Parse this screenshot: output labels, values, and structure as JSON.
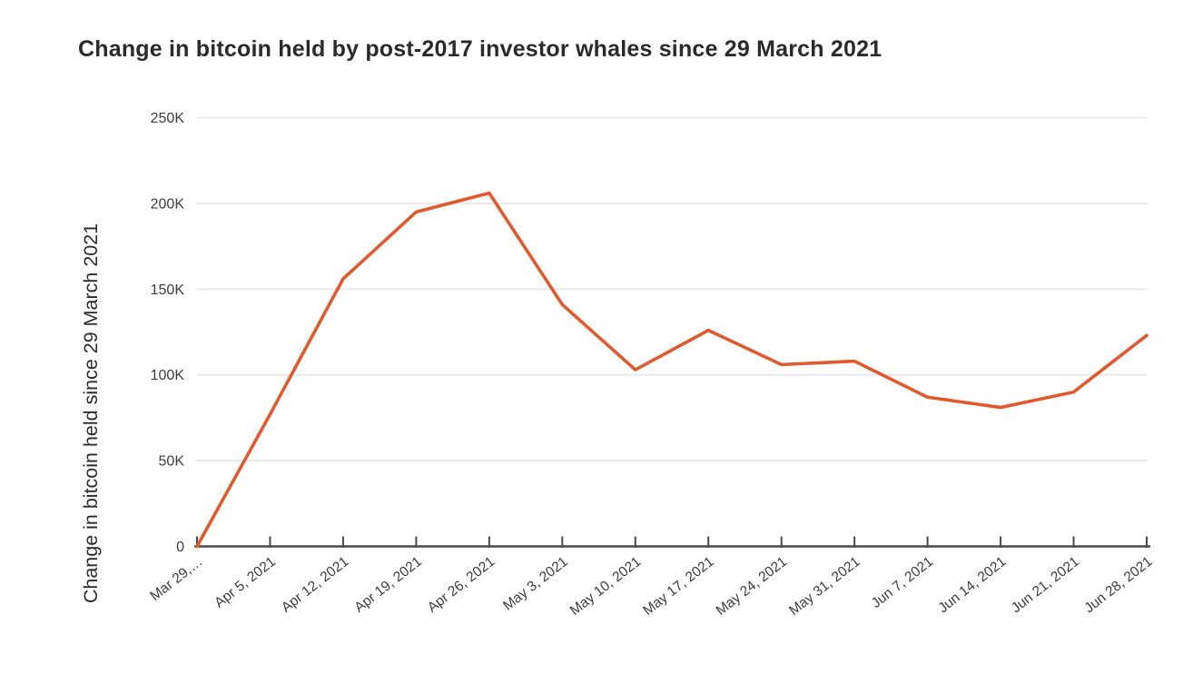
{
  "page_title": "Change in bitcoin held by post-2017 investor whales since 29 March 2021",
  "chart_data": {
    "type": "line",
    "title": "Change in bitcoin held by post-2017 investor whales since 29 March 2021",
    "ylabel": "Change in bitcoin held since 29 March 2021",
    "xlabel": "",
    "categories": [
      "Mar 29,…",
      "Apr 5, 2021",
      "Apr 12, 2021",
      "Apr 19, 2021",
      "Apr 26, 2021",
      "May 3, 2021",
      "May 10, 2021",
      "May 17, 2021",
      "May 24, 2021",
      "May 31, 2021",
      "Jun 7, 2021",
      "Jun 14, 2021",
      "Jun 21, 2021",
      "Jun 28, 2021"
    ],
    "values": [
      0,
      77000,
      156000,
      195000,
      206000,
      141000,
      103000,
      126000,
      106000,
      108000,
      87000,
      81000,
      90000,
      123000
    ],
    "ylim": [
      0,
      250000
    ],
    "ytick_values": [
      0,
      50000,
      100000,
      150000,
      200000,
      250000
    ],
    "ytick_labels": [
      "0",
      "50K",
      "100K",
      "150K",
      "200K",
      "250K"
    ],
    "grid": "horizontal",
    "legend": "none",
    "line_color": "#e05a2e",
    "gridline_color": "#e6e6e6",
    "axis_color": "#4a4a4a",
    "label_color": "#3d3d3d",
    "title_color": "#2b2b2b"
  }
}
